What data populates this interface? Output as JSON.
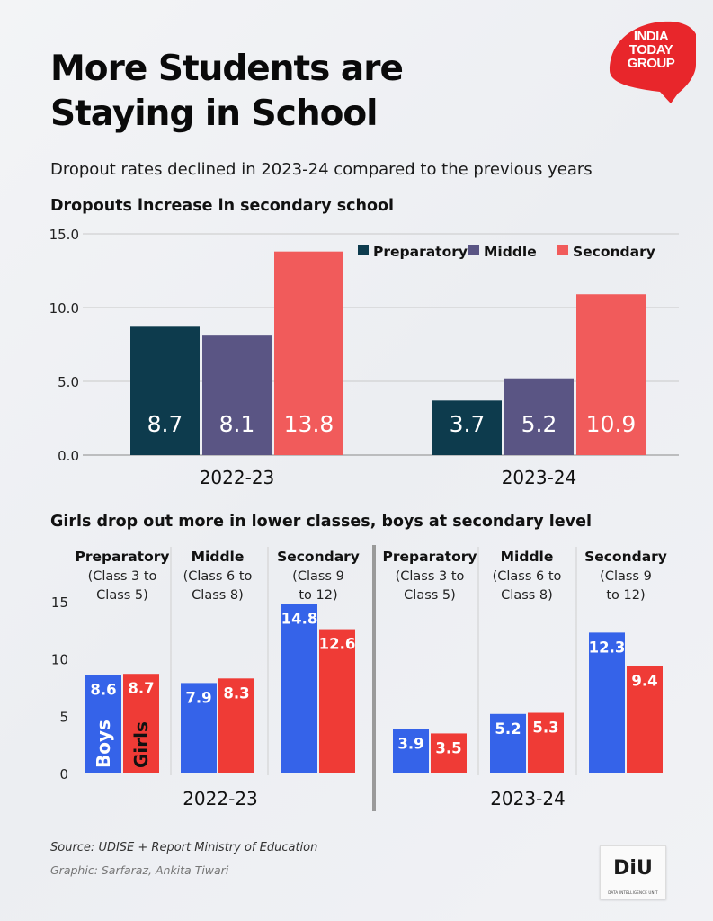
{
  "title_line1": "More Students are",
  "title_line2": "Staying in School",
  "subtitle": "Dropout rates declined in 2023-24 compared to the previous years",
  "logo": {
    "line1": "INDIA",
    "line2": "TODAY",
    "line3": "GROUP",
    "color": "#e8262b"
  },
  "source": "Source: UDISE + Report  Ministry of Education",
  "credit": "Graphic: Sarfaraz, Ankita Tiwari",
  "diu_logo": {
    "text": "DiU",
    "small_text": "DATA INTELLIGENCE UNIT"
  },
  "chart_data": [
    {
      "type": "bar",
      "title": "Dropouts increase in secondary school",
      "categories": [
        "2022-23",
        "2023-24"
      ],
      "series": [
        {
          "name": "Preparatory",
          "color": "#0d3b4d",
          "values": [
            8.7,
            3.7
          ]
        },
        {
          "name": "Middle",
          "color": "#5a5584",
          "values": [
            8.1,
            5.2
          ]
        },
        {
          "name": "Secondary",
          "color": "#f15b5b",
          "values": [
            13.8,
            10.9
          ]
        }
      ],
      "ylim": [
        0,
        15
      ],
      "yticks": [
        "0.0",
        "5.0",
        "10.0",
        "15.0"
      ],
      "grid": true,
      "legend_position": "top-right"
    },
    {
      "type": "bar",
      "title": "Girls drop out more in lower classes, boys at secondary level",
      "ylim": [
        0,
        15
      ],
      "yticks": [
        "0",
        "5",
        "10",
        "15"
      ],
      "grid": false,
      "series_names": [
        "Boys",
        "Girls"
      ],
      "colors": {
        "boys": "#3563e9",
        "girls": "#ef3b36"
      },
      "groups": [
        {
          "year": "2022-23",
          "levels": [
            {
              "name": "Preparatory",
              "sub1": "(Class 3 to",
              "sub2": "Class 5)",
              "boys": 8.6,
              "girls": 8.7
            },
            {
              "name": "Middle",
              "sub1": "(Class 6 to",
              "sub2": "Class 8)",
              "boys": 7.9,
              "girls": 8.3
            },
            {
              "name": "Secondary",
              "sub1": "(Class 9",
              "sub2": "to 12)",
              "boys": 14.8,
              "girls": 12.6
            }
          ]
        },
        {
          "year": "2023-24",
          "levels": [
            {
              "name": "Preparatory",
              "sub1": "(Class 3 to",
              "sub2": "Class 5)",
              "boys": 3.9,
              "girls": 3.5
            },
            {
              "name": "Middle",
              "sub1": "(Class 6 to",
              "sub2": "Class 8)",
              "boys": 5.2,
              "girls": 5.3
            },
            {
              "name": "Secondary",
              "sub1": "(Class 9",
              "sub2": "to 12)",
              "boys": 12.3,
              "girls": 9.4
            }
          ]
        }
      ]
    }
  ]
}
